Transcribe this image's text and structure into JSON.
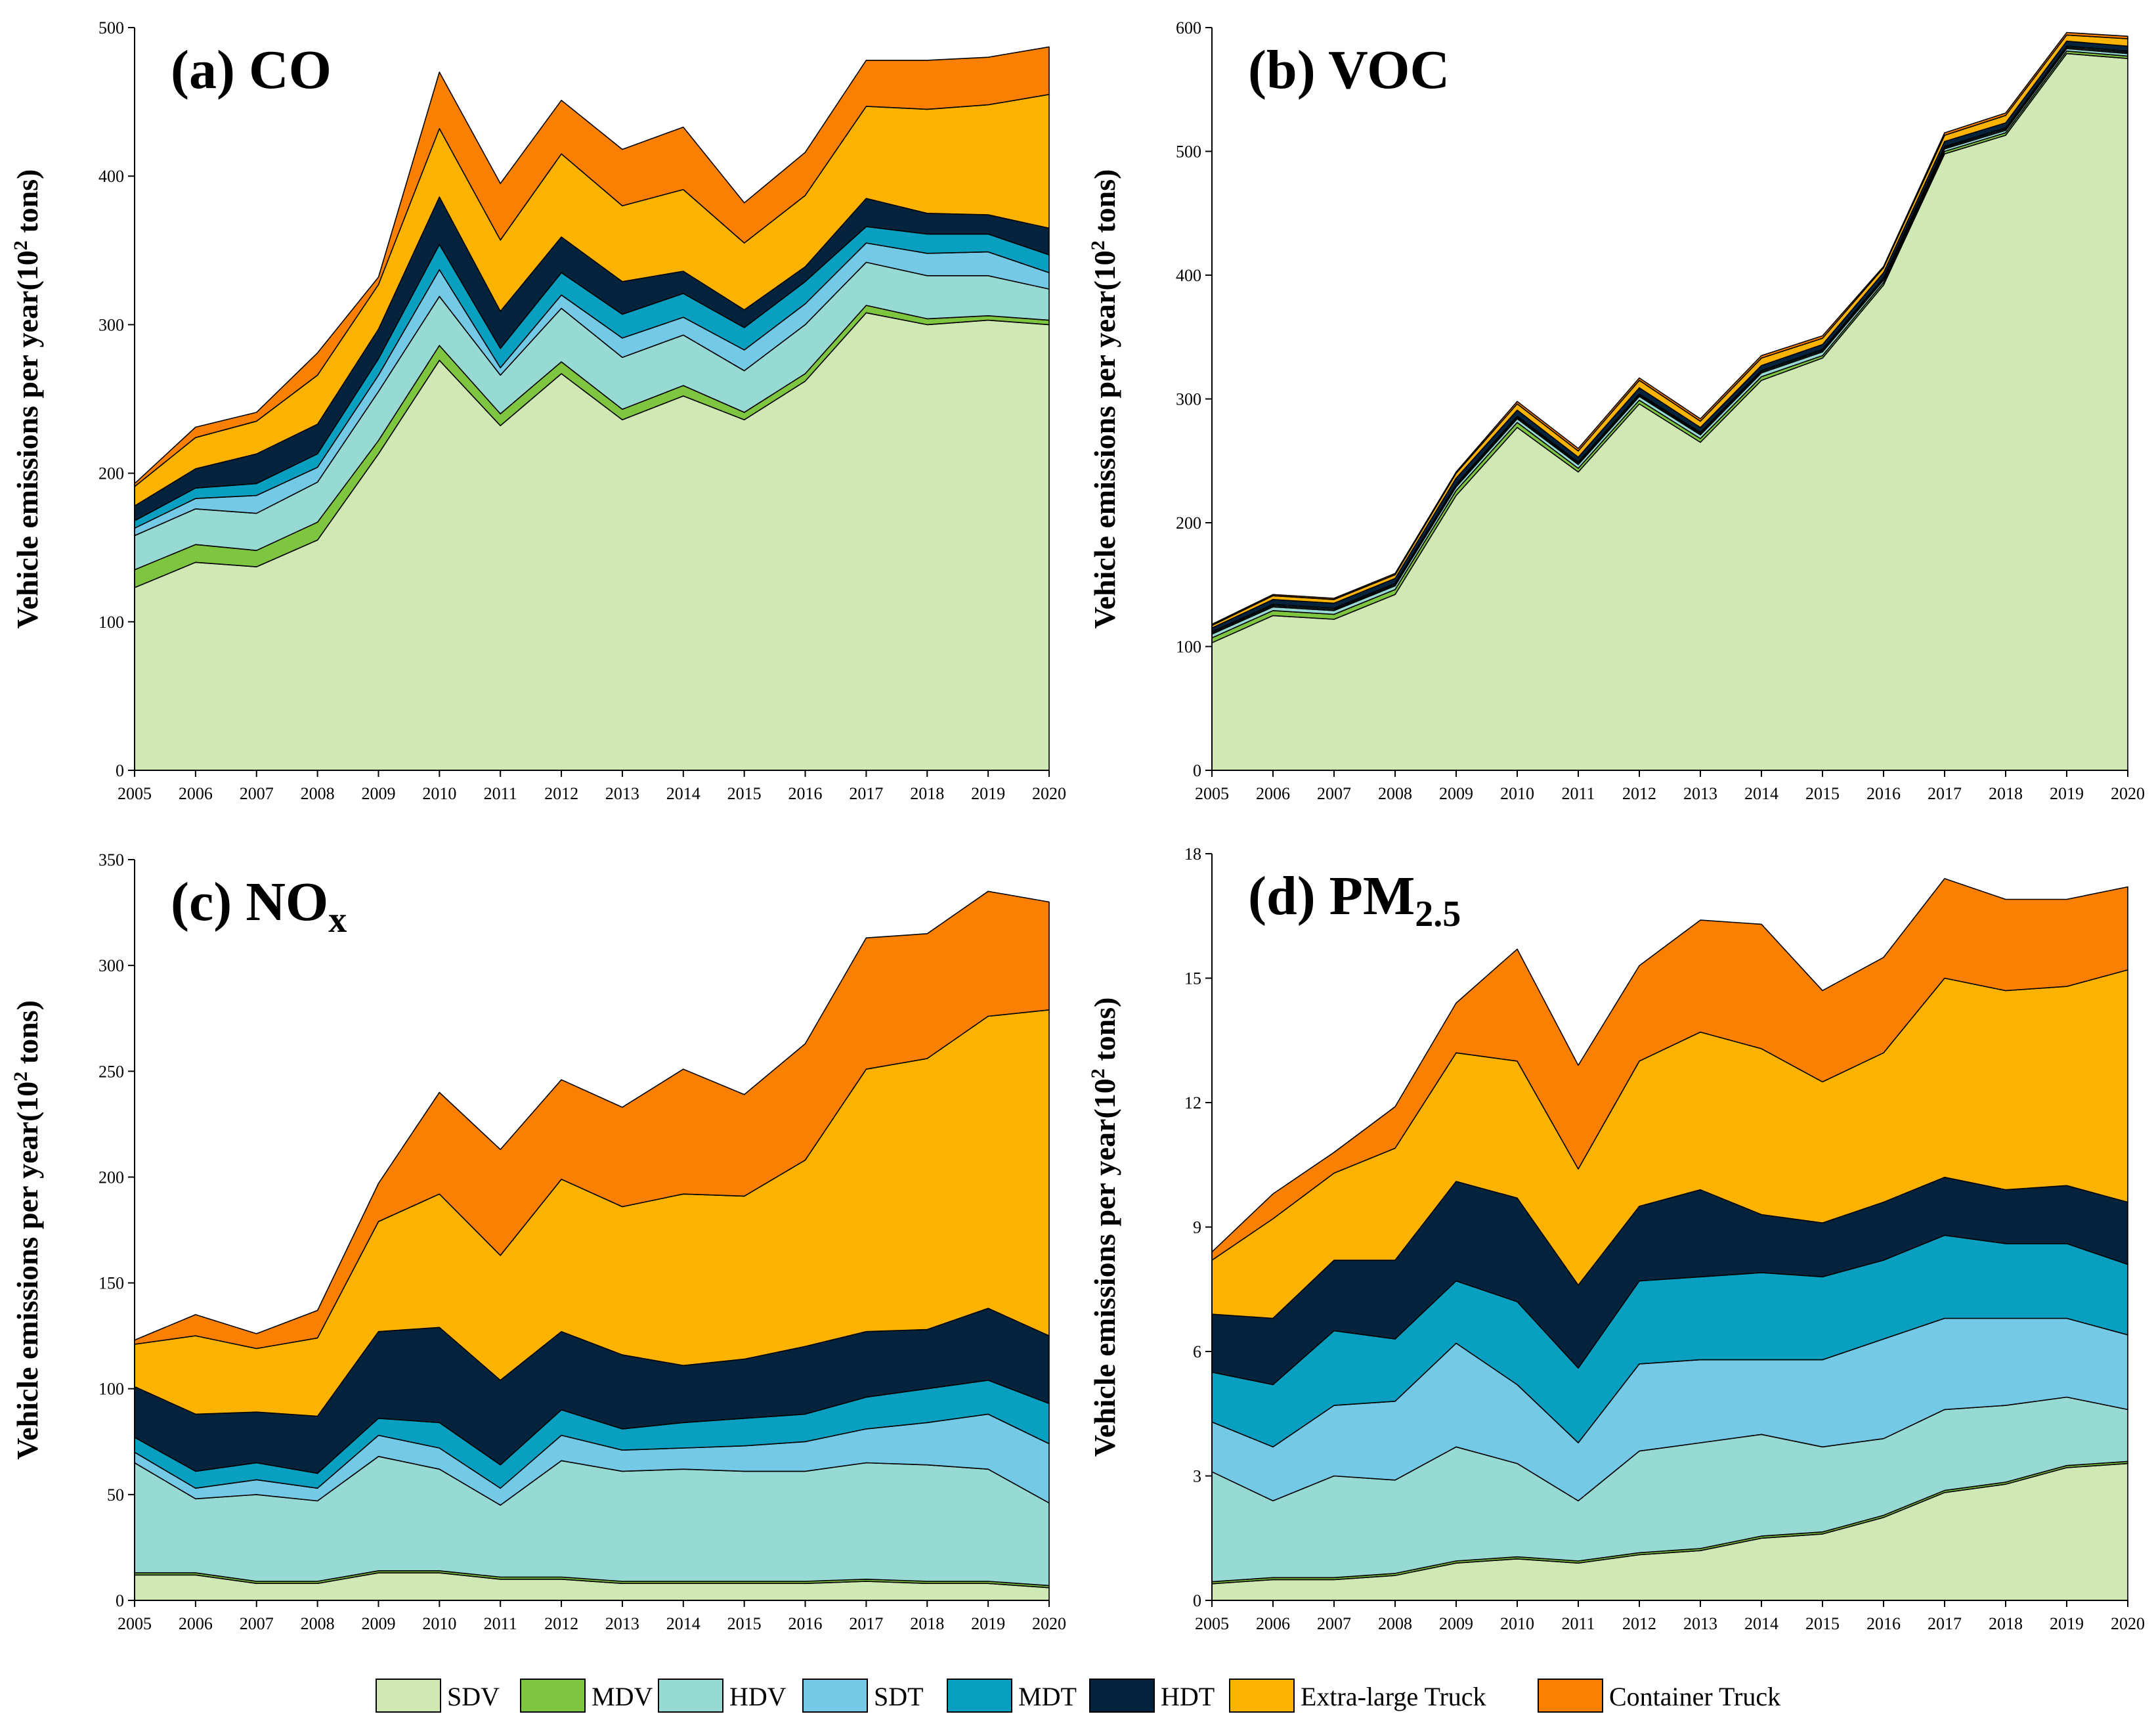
{
  "legend": {
    "entries": [
      {
        "key": "SDV",
        "label": "SDV",
        "color": "#d0e8b4"
      },
      {
        "key": "MDV",
        "label": "MDV",
        "color": "#7ec63f"
      },
      {
        "key": "HDV",
        "label": "HDV",
        "color": "#97dad4"
      },
      {
        "key": "SDT",
        "label": "SDT",
        "color": "#73c9e6"
      },
      {
        "key": "MDT",
        "label": "MDT",
        "color": "#089fc1"
      },
      {
        "key": "HDT",
        "label": "HDT",
        "color": "#05233c"
      },
      {
        "key": "XLT",
        "label": "Extra-large Truck",
        "color": "#fbb300"
      },
      {
        "key": "CT",
        "label": "Container Truck",
        "color": "#fb7f00"
      }
    ]
  },
  "chart_data": [
    {
      "type": "area",
      "stacked": true,
      "title": "(a) CO",
      "title_main": "(a) CO",
      "title_sub": "",
      "ylabel": "Vehicle emissions per year(10² tons)",
      "ylabel_pre": "Vehicle emissions per year(10",
      "ylabel_sup": "2",
      "ylabel_post": " tons)",
      "xlabel": "",
      "ylim": [
        0,
        500
      ],
      "yticks": [
        "0",
        "100",
        "200",
        "300",
        "400",
        "500"
      ],
      "x": [
        "2005",
        "2006",
        "2007",
        "2008",
        "2009",
        "2010",
        "2011",
        "2012",
        "2013",
        "2014",
        "2015",
        "2016",
        "2017",
        "2018",
        "2019",
        "2020"
      ],
      "series": [
        {
          "name": "SDV",
          "values": [
            123,
            140,
            137,
            155,
            213,
            276,
            232,
            267,
            236,
            252,
            236,
            262,
            308,
            300,
            303,
            300
          ]
        },
        {
          "name": "MDV",
          "values": [
            12,
            12,
            11,
            12,
            9,
            10,
            8,
            8,
            7,
            7,
            5,
            5,
            5,
            4,
            3,
            3
          ]
        },
        {
          "name": "HDV",
          "values": [
            23,
            24,
            25,
            27,
            33,
            33,
            26,
            36,
            35,
            34,
            28,
            33,
            29,
            29,
            27,
            21
          ]
        },
        {
          "name": "SDT",
          "values": [
            5,
            7,
            12,
            10,
            11,
            18,
            5,
            9,
            13,
            12,
            14,
            14,
            13,
            15,
            16,
            11
          ]
        },
        {
          "name": "MDT",
          "values": [
            5,
            7,
            8,
            9,
            11,
            17,
            13,
            15,
            16,
            16,
            15,
            15,
            11,
            13,
            12,
            12
          ]
        },
        {
          "name": "HDT",
          "values": [
            10,
            13,
            20,
            20,
            20,
            32,
            25,
            24,
            22,
            15,
            12,
            10,
            19,
            14,
            13,
            18
          ]
        },
        {
          "name": "Extra-large Truck",
          "values": [
            13,
            21,
            22,
            33,
            30,
            46,
            48,
            56,
            51,
            55,
            45,
            48,
            62,
            70,
            74,
            90
          ]
        },
        {
          "name": "Container Truck",
          "values": [
            2,
            7,
            6,
            15,
            5,
            38,
            38,
            36,
            38,
            42,
            27,
            29,
            31,
            33,
            32,
            32
          ]
        }
      ]
    },
    {
      "type": "area",
      "stacked": true,
      "title": "(b) VOC",
      "title_main": "(b) VOC",
      "title_sub": "",
      "ylabel": "Vehicle emissions per year(10² tons)",
      "ylabel_pre": "Vehicle emissions per year(10",
      "ylabel_sup": "2",
      "ylabel_post": " tons)",
      "xlabel": "",
      "ylim": [
        0,
        600
      ],
      "yticks": [
        "0",
        "100",
        "200",
        "300",
        "400",
        "500",
        "600"
      ],
      "x": [
        "2005",
        "2006",
        "2007",
        "2008",
        "2009",
        "2010",
        "2011",
        "2012",
        "2013",
        "2014",
        "2015",
        "2016",
        "2017",
        "2018",
        "2019",
        "2020"
      ],
      "series": [
        {
          "name": "SDV",
          "values": [
            103,
            125,
            122,
            142,
            222,
            277,
            241,
            296,
            265,
            315,
            333,
            392,
            498,
            513,
            579,
            575
          ]
        },
        {
          "name": "MDV",
          "values": [
            4,
            4,
            4,
            4,
            4,
            4,
            3,
            3,
            3,
            3,
            2,
            2,
            2,
            2,
            2,
            2
          ]
        },
        {
          "name": "HDV",
          "values": [
            3,
            3,
            3,
            3,
            3,
            3,
            3,
            3,
            3,
            3,
            3,
            2,
            2,
            2,
            2,
            2
          ]
        },
        {
          "name": "SDT",
          "values": [
            1,
            1,
            1,
            1,
            1,
            1,
            1,
            1,
            1,
            1,
            1,
            1,
            1,
            1,
            1,
            1
          ]
        },
        {
          "name": "MDT",
          "values": [
            1,
            1,
            1,
            1,
            1,
            1,
            1,
            1,
            1,
            1,
            1,
            1,
            1,
            1,
            1,
            1
          ]
        },
        {
          "name": "HDT",
          "values": [
            3,
            4,
            4,
            4,
            5,
            5,
            4,
            5,
            4,
            4,
            4,
            4,
            4,
            4,
            4,
            4
          ]
        },
        {
          "name": "Extra-large Truck",
          "values": [
            2,
            3,
            3,
            3,
            4,
            5,
            5,
            6,
            5,
            6,
            5,
            4,
            5,
            6,
            5,
            6
          ]
        },
        {
          "name": "Container Truck",
          "values": [
            1,
            1,
            1,
            1,
            1,
            2,
            2,
            2,
            2,
            2,
            2,
            1,
            2,
            2,
            2,
            2
          ]
        }
      ]
    },
    {
      "type": "area",
      "stacked": true,
      "title": "(c) NOx",
      "title_main": "(c) NO",
      "title_sub": "x",
      "ylabel": "Vehicle emissions per year(10² tons)",
      "ylabel_pre": "Vehicle emissions per year(10",
      "ylabel_sup": "2",
      "ylabel_post": " tons)",
      "xlabel": "",
      "ylim": [
        0,
        350
      ],
      "yticks": [
        "0",
        "50",
        "100",
        "150",
        "200",
        "250",
        "300",
        "350"
      ],
      "x": [
        "2005",
        "2006",
        "2007",
        "2008",
        "2009",
        "2010",
        "2011",
        "2012",
        "2013",
        "2014",
        "2015",
        "2016",
        "2017",
        "2018",
        "2019",
        "2020"
      ],
      "series": [
        {
          "name": "SDV",
          "values": [
            12,
            12,
            8,
            8,
            13,
            13,
            10,
            10,
            8,
            8,
            8,
            8,
            9,
            8,
            8,
            6
          ]
        },
        {
          "name": "MDV",
          "values": [
            1,
            1,
            1,
            1,
            1,
            1,
            1,
            1,
            1,
            1,
            1,
            1,
            1,
            1,
            1,
            1
          ]
        },
        {
          "name": "HDV",
          "values": [
            52,
            35,
            41,
            38,
            54,
            48,
            34,
            55,
            52,
            53,
            52,
            52,
            55,
            55,
            53,
            39
          ]
        },
        {
          "name": "SDT",
          "values": [
            5,
            5,
            7,
            6,
            10,
            10,
            8,
            12,
            10,
            10,
            12,
            14,
            16,
            20,
            26,
            28
          ]
        },
        {
          "name": "MDT",
          "values": [
            7,
            8,
            8,
            7,
            8,
            12,
            11,
            12,
            10,
            12,
            13,
            13,
            15,
            16,
            16,
            19
          ]
        },
        {
          "name": "HDT",
          "values": [
            24,
            27,
            24,
            27,
            41,
            45,
            40,
            37,
            35,
            27,
            28,
            32,
            31,
            28,
            34,
            32
          ]
        },
        {
          "name": "Extra-large Truck",
          "values": [
            20,
            37,
            30,
            37,
            52,
            63,
            59,
            72,
            70,
            81,
            77,
            88,
            124,
            128,
            138,
            154
          ]
        },
        {
          "name": "Container Truck",
          "values": [
            2,
            10,
            7,
            13,
            18,
            48,
            50,
            47,
            47,
            59,
            48,
            55,
            62,
            59,
            59,
            51
          ]
        }
      ]
    },
    {
      "type": "area",
      "stacked": true,
      "title": "(d) PM2.5",
      "title_main": "(d) PM",
      "title_sub": "2.5",
      "ylabel": "Vehicle emissions per year(10² tons)",
      "ylabel_pre": "Vehicle emissions per year(10",
      "ylabel_sup": "2",
      "ylabel_post": " tons)",
      "xlabel": "",
      "ylim": [
        0,
        18
      ],
      "yticks": [
        "0",
        "3",
        "6",
        "9",
        "12",
        "15",
        "18"
      ],
      "x": [
        "2005",
        "2006",
        "2007",
        "2008",
        "2009",
        "2010",
        "2011",
        "2012",
        "2013",
        "2014",
        "2015",
        "2016",
        "2017",
        "2018",
        "2019",
        "2020"
      ],
      "series": [
        {
          "name": "SDV",
          "values": [
            0.4,
            0.5,
            0.5,
            0.6,
            0.9,
            1.0,
            0.9,
            1.1,
            1.2,
            1.5,
            1.6,
            2.0,
            2.6,
            2.8,
            3.2,
            3.3
          ]
        },
        {
          "name": "MDV",
          "values": [
            0.05,
            0.05,
            0.05,
            0.05,
            0.05,
            0.05,
            0.05,
            0.05,
            0.05,
            0.05,
            0.05,
            0.05,
            0.05,
            0.05,
            0.05,
            0.05
          ]
        },
        {
          "name": "HDV",
          "values": [
            2.65,
            1.85,
            2.45,
            2.25,
            2.75,
            2.25,
            1.45,
            2.45,
            2.55,
            2.45,
            2.05,
            1.85,
            1.95,
            1.85,
            1.65,
            1.25
          ]
        },
        {
          "name": "SDT",
          "values": [
            1.2,
            1.3,
            1.7,
            1.9,
            2.5,
            1.9,
            1.4,
            2.1,
            2.0,
            1.8,
            2.1,
            2.4,
            2.2,
            2.1,
            1.9,
            1.8
          ]
        },
        {
          "name": "MDT",
          "values": [
            1.2,
            1.5,
            1.8,
            1.5,
            1.5,
            2.0,
            1.8,
            2.0,
            2.0,
            2.1,
            2.0,
            1.9,
            2.0,
            1.8,
            1.8,
            1.7
          ]
        },
        {
          "name": "HDT",
          "values": [
            1.4,
            1.6,
            1.7,
            1.9,
            2.4,
            2.5,
            2.0,
            1.8,
            2.1,
            1.4,
            1.3,
            1.4,
            1.4,
            1.3,
            1.4,
            1.5
          ]
        },
        {
          "name": "Extra-large Truck",
          "values": [
            1.3,
            2.4,
            2.1,
            2.7,
            3.1,
            3.3,
            2.8,
            3.5,
            3.8,
            4.0,
            3.4,
            3.6,
            4.8,
            4.8,
            4.8,
            5.6
          ]
        },
        {
          "name": "Container Truck",
          "values": [
            0.2,
            0.6,
            0.5,
            1.0,
            1.2,
            2.7,
            2.5,
            2.3,
            2.7,
            3.0,
            2.2,
            2.3,
            2.4,
            2.2,
            2.1,
            2.0
          ]
        }
      ]
    }
  ]
}
